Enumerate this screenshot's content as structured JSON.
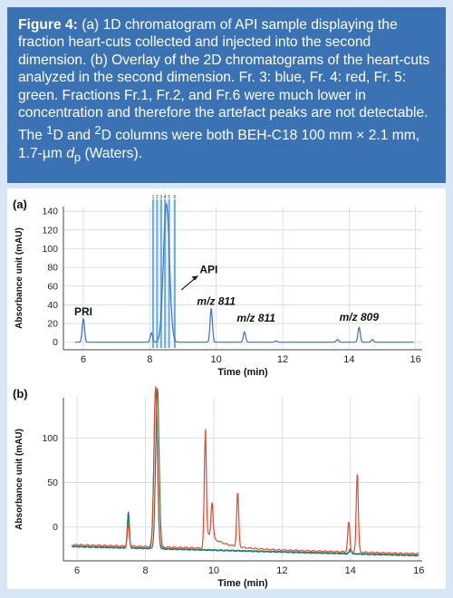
{
  "caption": {
    "label": "Figure 4:",
    "body_pre": " (a) 1D chromatogram of API sample displaying the fraction heart-cuts collected and injected into the second dimension. (b) Overlay of the 2D chromatograms of the heart-cuts analyzed in the second dimension. Fr. 3: blue, Fr. 4: red, Fr. 5: green. Fractions Fr.1, Fr.2, and Fr.6 were much lower in concentration and therefore the artefact peaks are not detectable. The ",
    "sup1": "1",
    "mid1": "D and ",
    "sup2": "2",
    "mid2": "D columns were both BEH-C18 100 mm × 2.1 mm, 1.7-µm ",
    "d_italic": "d",
    "sub_p": "p",
    "tail": " (Waters)."
  },
  "colors": {
    "caption_bg": "#3a72b3",
    "page_bg": "#d7e6f5",
    "fr3_blue": "#2a5db0",
    "fr4_red": "#e8462c",
    "fr5_green": "#1f8a4c",
    "trace_a": "#3a6fc4",
    "cut_lines": "#5aa6e0"
  },
  "chart_data": [
    {
      "type": "line",
      "panel_label": "(a)",
      "xlabel": "Time (min)",
      "ylabel": "Absorbance unit (mAU)",
      "xlim": [
        5.4,
        16.2
      ],
      "ylim": [
        -8,
        145
      ],
      "xticks": [
        6,
        8,
        10,
        12,
        14,
        16
      ],
      "yticks": [
        0,
        20,
        40,
        60,
        80,
        100,
        120,
        140
      ],
      "grid": true,
      "heartcut_times": [
        8.1,
        8.22,
        8.34,
        8.46,
        8.58,
        8.75
      ],
      "heartcut_labels": [
        "1",
        "2",
        "3",
        "4",
        "5",
        "6"
      ],
      "peaks": [
        {
          "t": 6.0,
          "h": 25
        },
        {
          "t": 8.05,
          "h": 10
        },
        {
          "t": 8.5,
          "h": 148
        },
        {
          "t": 9.85,
          "h": 36
        },
        {
          "t": 10.85,
          "h": 11
        },
        {
          "t": 11.8,
          "h": 1.5
        },
        {
          "t": 13.65,
          "h": 3
        },
        {
          "t": 14.3,
          "h": 16
        },
        {
          "t": 14.7,
          "h": 3
        }
      ],
      "annotations": [
        {
          "text": "PRI",
          "x": 6.0,
          "y": 29
        },
        {
          "text": "API",
          "x": 9.5,
          "y": 74
        },
        {
          "text": "m/z 811",
          "x": 10.0,
          "y": 40
        },
        {
          "text": "m/z 811",
          "x": 11.2,
          "y": 22
        },
        {
          "text": "m/z 809",
          "x": 14.3,
          "y": 23
        }
      ]
    },
    {
      "type": "line",
      "panel_label": "(b)",
      "xlabel": "Time (min)",
      "ylabel": "Absorbance unit (mAU)",
      "xlim": [
        5.6,
        16.1
      ],
      "ylim": [
        -38,
        145
      ],
      "xticks": [
        6,
        8,
        10,
        12,
        14,
        16
      ],
      "yticks": [
        0,
        50,
        100
      ],
      "grid": true,
      "series": [
        {
          "color": "fr3_blue",
          "baseline": -22,
          "peaks": [
            {
              "t": 7.5,
              "h": 40
            },
            {
              "t": 8.3,
              "h": 180
            },
            {
              "t": 14.0,
              "h": 5
            }
          ]
        },
        {
          "color": "fr4_red",
          "baseline": -20,
          "peaks": [
            {
              "t": 7.5,
              "h": 24
            },
            {
              "t": 8.3,
              "h": 180
            },
            {
              "t": 9.75,
              "h": 120
            },
            {
              "t": 9.95,
              "h": 40
            },
            {
              "t": 10.7,
              "h": 60
            },
            {
              "t": 13.95,
              "h": 33
            },
            {
              "t": 14.2,
              "h": 88
            }
          ]
        },
        {
          "color": "fr5_green",
          "baseline": -22,
          "peaks": [
            {
              "t": 7.5,
              "h": 35
            },
            {
              "t": 8.35,
              "h": 180
            },
            {
              "t": 14.0,
              "h": 4
            }
          ]
        }
      ]
    }
  ]
}
